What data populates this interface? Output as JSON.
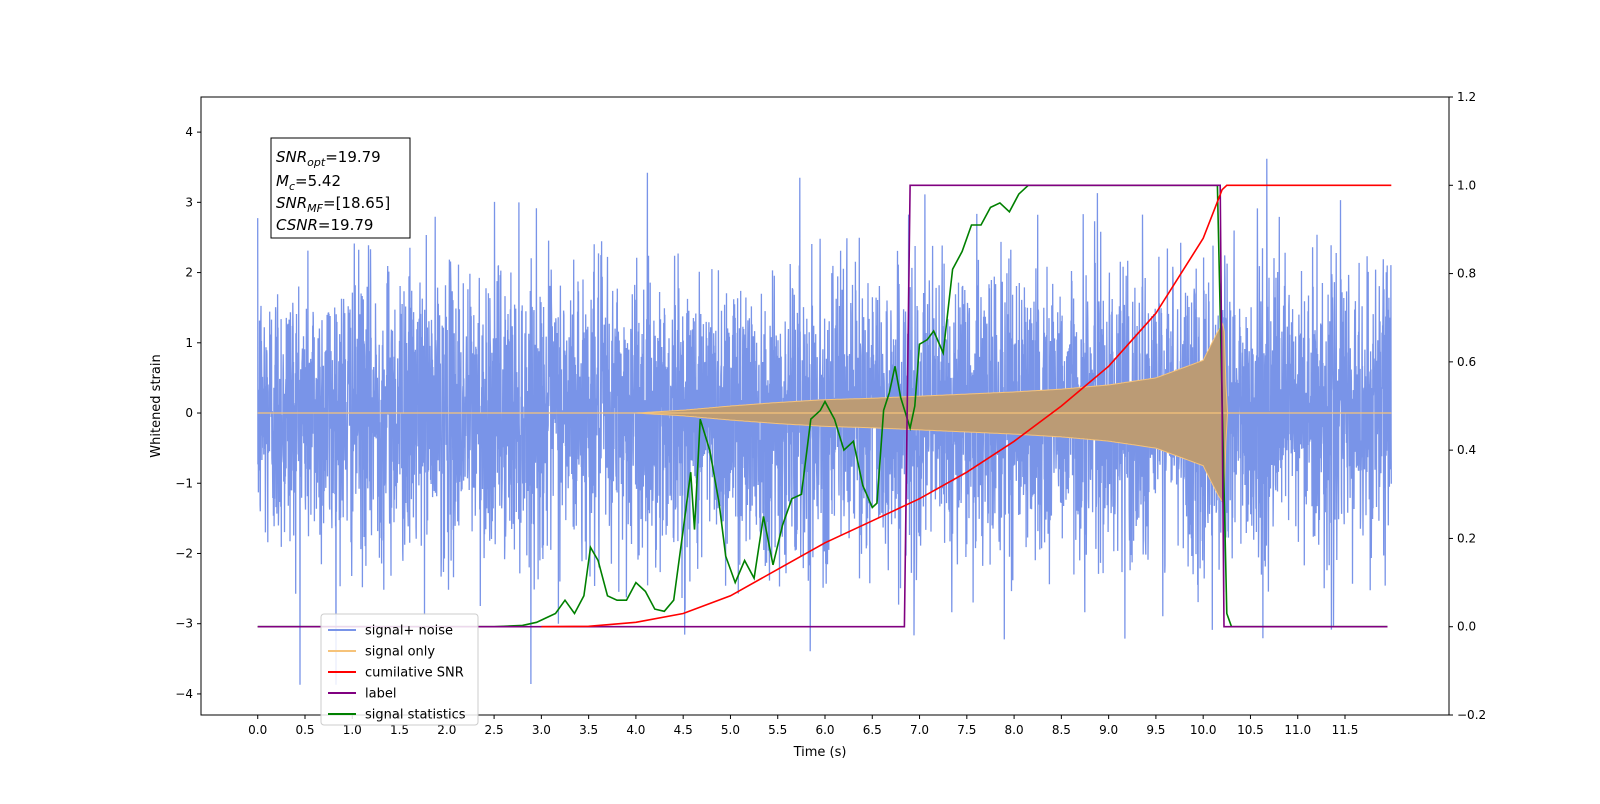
{
  "chart_data": {
    "type": "line",
    "title": "",
    "xlabel": "Time (s)",
    "ylabel": "Whitened strain",
    "xlim": [
      -0.6,
      12.6
    ],
    "ylim": [
      -4.3,
      4.5
    ],
    "y2lim": [
      -0.2,
      1.2
    ],
    "grid": false,
    "legend_position": "lower-left",
    "x_ticks": [
      "0.0",
      "0.5",
      "1.0",
      "1.5",
      "2.0",
      "2.5",
      "3.0",
      "3.5",
      "4.0",
      "4.5",
      "5.0",
      "5.5",
      "6.0",
      "6.5",
      "7.0",
      "7.5",
      "8.0",
      "8.5",
      "9.0",
      "9.5",
      "10.0",
      "10.5",
      "11.0",
      "11.5"
    ],
    "y_ticks": [
      "-4",
      "-3",
      "-2",
      "-1",
      "0",
      "1",
      "2",
      "3",
      "4"
    ],
    "y2_ticks": [
      "-0.2",
      "0.0",
      "0.2",
      "0.4",
      "0.6",
      "0.8",
      "1.0",
      "1.2"
    ],
    "annotation": {
      "line1_main": "SNR",
      "line1_sub": "opt",
      "line1_val": "=19.79",
      "line2_main": "M",
      "line2_sub": "c",
      "line2_val": "=5.42",
      "line3_main": "SNR",
      "line3_sub": "MF",
      "line3_val": "=[18.65]",
      "line4_main": "CSNR",
      "line4_val": "=19.79"
    },
    "series": [
      {
        "name": "signal+ noise",
        "axis": "left",
        "color": "#7994e8",
        "description": "white noise, std ~1, range ~[-3.9, 4.1], t from 0 to 12",
        "x_range": [
          0.0,
          11.99
        ],
        "peak_max": 4.12,
        "peak_min": -3.87
      },
      {
        "name": "signal only",
        "axis": "left",
        "color": "#f6c37a",
        "description": "chirp with envelope growing to ~1.3 near t=10.2, then 0",
        "envelope": {
          "x": [
            0,
            4.0,
            4.5,
            5.0,
            5.5,
            6.0,
            6.5,
            7.0,
            7.5,
            8.0,
            8.5,
            9.0,
            9.5,
            10.0,
            10.15,
            10.22,
            10.25,
            11.99
          ],
          "y": [
            0,
            0.0,
            0.04,
            0.1,
            0.15,
            0.19,
            0.21,
            0.24,
            0.27,
            0.3,
            0.34,
            0.4,
            0.5,
            0.75,
            1.15,
            1.3,
            0,
            0
          ]
        }
      },
      {
        "name": "cumilative SNR",
        "axis": "right",
        "color": "#ff0000",
        "x": [
          3.0,
          3.5,
          4.0,
          4.5,
          5.0,
          5.5,
          6.0,
          6.5,
          7.0,
          7.5,
          8.0,
          8.5,
          9.0,
          9.5,
          10.0,
          10.2,
          10.25,
          11.99
        ],
        "y": [
          0.0,
          0.001,
          0.01,
          0.03,
          0.07,
          0.13,
          0.19,
          0.24,
          0.29,
          0.35,
          0.42,
          0.5,
          0.59,
          0.71,
          0.88,
          0.99,
          1.0,
          1.0
        ]
      },
      {
        "name": "label",
        "axis": "right",
        "color": "#800080",
        "x": [
          0.0,
          6.84,
          6.9,
          10.18,
          10.22,
          11.95
        ],
        "y": [
          0.0,
          0.0,
          1.0,
          1.0,
          0.0,
          0.0
        ]
      },
      {
        "name": "signal statistics",
        "axis": "right",
        "color": "#008000",
        "x": [
          0.0,
          2.5,
          2.8,
          2.95,
          3.05,
          3.15,
          3.25,
          3.35,
          3.45,
          3.52,
          3.6,
          3.7,
          3.8,
          3.9,
          4.0,
          4.1,
          4.2,
          4.3,
          4.4,
          4.5,
          4.58,
          4.62,
          4.68,
          4.78,
          4.88,
          4.95,
          5.05,
          5.15,
          5.25,
          5.35,
          5.45,
          5.55,
          5.65,
          5.75,
          5.85,
          5.95,
          6.0,
          6.1,
          6.2,
          6.3,
          6.4,
          6.5,
          6.55,
          6.62,
          6.68,
          6.74,
          6.8,
          6.9,
          6.95,
          7.0,
          7.08,
          7.15,
          7.25,
          7.35,
          7.45,
          7.55,
          7.65,
          7.75,
          7.85,
          7.95,
          8.05,
          8.15,
          8.3,
          8.5,
          9.0,
          10.0,
          10.15,
          10.25,
          10.3,
          11.95
        ],
        "y": [
          0.0,
          0.0,
          0.003,
          0.01,
          0.02,
          0.03,
          0.06,
          0.03,
          0.07,
          0.18,
          0.15,
          0.07,
          0.06,
          0.06,
          0.1,
          0.08,
          0.04,
          0.035,
          0.06,
          0.22,
          0.35,
          0.22,
          0.47,
          0.4,
          0.28,
          0.16,
          0.1,
          0.15,
          0.11,
          0.25,
          0.14,
          0.23,
          0.29,
          0.3,
          0.47,
          0.49,
          0.51,
          0.47,
          0.4,
          0.42,
          0.32,
          0.27,
          0.28,
          0.49,
          0.53,
          0.59,
          0.52,
          0.45,
          0.5,
          0.64,
          0.65,
          0.67,
          0.62,
          0.81,
          0.85,
          0.91,
          0.91,
          0.95,
          0.96,
          0.94,
          0.98,
          1.0,
          1.0,
          1.0,
          1.0,
          1.0,
          1.0,
          0.03,
          0.0,
          0.0
        ]
      }
    ]
  }
}
